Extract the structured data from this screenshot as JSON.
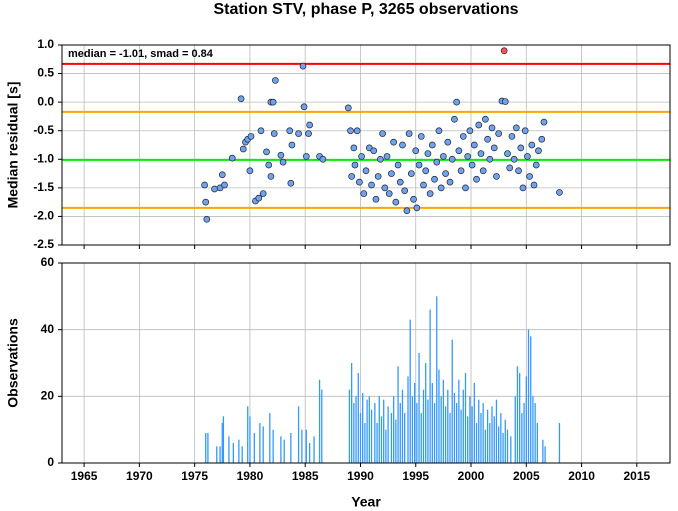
{
  "chart_data": [
    {
      "type": "scatter",
      "title": "Station STV, phase P, 3265 observations",
      "ylabel": "Median residual [s]",
      "annotation": "median = -1.01, smad = 0.84",
      "xlim": [
        1963,
        2018
      ],
      "xticks": [
        1965,
        1970,
        1975,
        1980,
        1985,
        1990,
        1995,
        2000,
        2005,
        2010,
        2015
      ],
      "ylim": [
        -2.5,
        1.0
      ],
      "yticks": [
        {
          "value": 1,
          "label": "1.0"
        },
        0.5,
        {
          "value": 0,
          "label": "0.0"
        },
        -0.5,
        {
          "value": -1,
          "label": "-1.0"
        },
        -1.5,
        {
          "value": -2,
          "label": "-2.0"
        },
        -2.5
      ],
      "grid": true,
      "color": "#6fa3ee",
      "hlines": [
        {
          "value": 0.67,
          "color": "#ff0000"
        },
        {
          "value": -0.17,
          "color": "#ffa500"
        },
        {
          "value": -1.01,
          "color": "#00ee00"
        },
        {
          "value": -1.85,
          "color": "#ffa500"
        }
      ],
      "x": [
        1975.9,
        1976.0,
        1976.1,
        1976.8,
        1977.3,
        1977.5,
        1977.7,
        1978.4,
        1979.2,
        1979.4,
        1979.6,
        1979.8,
        1980.0,
        1980.1,
        1980.5,
        1980.8,
        1981.0,
        1981.2,
        1981.5,
        1981.7,
        1981.9,
        1981.9,
        1982.1,
        1982.3,
        1982.2,
        1982.8,
        1983.0,
        1983.6,
        1983.7,
        1983.8,
        1984.4,
        1984.8,
        1984.9,
        1985.1,
        1985.3,
        1985.4,
        1986.3,
        1986.6,
        1988.9,
        1989.1,
        1989.2,
        1989.4,
        1989.5,
        1989.7,
        1989.9,
        1990.1,
        1990.3,
        1990.5,
        1990.8,
        1991.0,
        1991.2,
        1991.4,
        1991.6,
        1991.8,
        1992.0,
        1992.2,
        1992.4,
        1992.6,
        1992.8,
        1993.0,
        1993.2,
        1993.4,
        1993.6,
        1993.8,
        1994.0,
        1994.2,
        1994.4,
        1994.6,
        1994.8,
        1995.0,
        1995.1,
        1995.3,
        1995.5,
        1995.7,
        1995.9,
        1996.1,
        1996.3,
        1996.5,
        1996.7,
        1996.9,
        1997.1,
        1997.3,
        1997.5,
        1997.7,
        1997.9,
        1998.1,
        1998.3,
        1998.5,
        1998.7,
        1998.9,
        1999.1,
        1999.3,
        1999.5,
        1999.7,
        1999.9,
        2000.1,
        2000.3,
        2000.5,
        2000.7,
        2000.9,
        2001.1,
        2001.3,
        2001.5,
        2001.7,
        2001.9,
        2002.1,
        2002.3,
        2002.5,
        2002.8,
        2003.1,
        2003.3,
        2003.5,
        2003.7,
        2003.9,
        2004.1,
        2004.3,
        2004.5,
        2004.7,
        2004.9,
        2005.1,
        2005.3,
        2005.5,
        2005.7,
        2005.9,
        2006.1,
        2006.4,
        2006.6,
        2008.0
      ],
      "values": [
        -1.45,
        -1.75,
        -2.05,
        -1.52,
        -1.5,
        -1.27,
        -1.45,
        -0.98,
        0.06,
        -0.82,
        -0.7,
        -0.65,
        -1.2,
        -0.6,
        -1.73,
        -1.68,
        -0.5,
        -1.6,
        -0.87,
        -1.1,
        -1.3,
        0.0,
        0.0,
        0.38,
        -0.55,
        -0.93,
        -1.05,
        -0.5,
        -1.42,
        -0.75,
        -0.55,
        0.63,
        -0.08,
        -0.95,
        -0.55,
        -0.4,
        -0.95,
        -1.0,
        -0.1,
        -0.5,
        -1.3,
        -0.8,
        -1.1,
        -0.5,
        -1.4,
        -0.95,
        -1.6,
        -1.2,
        -0.8,
        -1.45,
        -0.85,
        -1.7,
        -1.3,
        -1.0,
        -0.55,
        -1.5,
        -0.95,
        -1.6,
        -1.25,
        -0.7,
        -1.75,
        -1.1,
        -1.4,
        -0.75,
        -1.55,
        -1.9,
        -0.55,
        -1.25,
        -1.7,
        -0.85,
        -1.85,
        -1.1,
        -0.6,
        -1.45,
        -1.2,
        -0.9,
        -1.6,
        -0.75,
        -1.35,
        -1.05,
        -0.5,
        -1.5,
        -0.95,
        -1.25,
        -0.7,
        -1.4,
        -1.0,
        -0.3,
        0.0,
        -0.85,
        -1.2,
        -0.6,
        -1.5,
        -0.95,
        -0.5,
        -1.1,
        -0.75,
        -1.35,
        -0.4,
        -0.9,
        -1.2,
        -0.3,
        -0.65,
        -1.0,
        -0.45,
        -0.8,
        -1.3,
        -0.55,
        0.02,
        0.01,
        -0.9,
        -1.15,
        -0.6,
        -1.0,
        -0.45,
        -1.2,
        -0.8,
        -1.5,
        -0.5,
        -0.95,
        -1.3,
        -0.75,
        -1.45,
        -1.1,
        -0.85,
        -0.65,
        -0.35,
        -1.58
      ],
      "outlier_x": [
        2003.0
      ],
      "outlier_values": [
        0.9
      ],
      "outlier_color": "#ff5555"
    },
    {
      "type": "bar",
      "ylabel": "Observations",
      "xlabel": "Year",
      "xlim": [
        1963,
        2018
      ],
      "xticks": [
        1965,
        1970,
        1975,
        1980,
        1985,
        1990,
        1995,
        2000,
        2005,
        2010,
        2015
      ],
      "ylim": [
        0,
        60
      ],
      "yticks": [
        0,
        20,
        40,
        60
      ],
      "grid": true,
      "color": "#3399ff",
      "x": [
        1976.0,
        1976.2,
        1977.0,
        1977.3,
        1977.5,
        1977.6,
        1978.1,
        1978.5,
        1979.0,
        1979.3,
        1979.8,
        1980.0,
        1980.4,
        1980.9,
        1981.2,
        1981.8,
        1982.1,
        1982.8,
        1983.1,
        1983.7,
        1984.4,
        1984.7,
        1985.1,
        1985.4,
        1985.8,
        1986.3,
        1986.5,
        1989.0,
        1989.2,
        1989.4,
        1989.6,
        1989.8,
        1990.0,
        1990.2,
        1990.4,
        1990.6,
        1990.8,
        1991.0,
        1991.3,
        1991.5,
        1991.7,
        1991.9,
        1992.1,
        1992.3,
        1992.5,
        1992.8,
        1993.0,
        1993.2,
        1993.4,
        1993.6,
        1993.8,
        1994.0,
        1994.3,
        1994.5,
        1994.7,
        1994.9,
        1995.1,
        1995.3,
        1995.5,
        1995.7,
        1995.9,
        1996.1,
        1996.3,
        1996.5,
        1996.7,
        1996.9,
        1997.1,
        1997.3,
        1997.5,
        1997.7,
        1997.9,
        1998.1,
        1998.3,
        1998.5,
        1998.7,
        1998.9,
        1999.1,
        1999.3,
        1999.5,
        1999.7,
        1999.9,
        2000.1,
        2000.3,
        2000.5,
        2000.7,
        2000.9,
        2001.1,
        2001.3,
        2001.5,
        2001.7,
        2001.9,
        2002.1,
        2002.3,
        2002.5,
        2002.7,
        2002.9,
        2003.1,
        2003.3,
        2003.6,
        2004.0,
        2004.2,
        2004.4,
        2004.6,
        2004.8,
        2005.0,
        2005.2,
        2005.4,
        2005.6,
        2005.8,
        2006.0,
        2006.5,
        2006.7,
        2008.0
      ],
      "values": [
        9,
        9,
        5,
        5,
        12,
        14,
        8,
        6,
        7,
        5,
        17,
        14,
        9,
        12,
        11,
        15,
        10,
        8,
        7,
        9,
        17,
        10,
        10,
        6,
        8,
        25,
        22,
        22,
        30,
        18,
        20,
        27,
        15,
        21,
        12,
        19,
        20,
        16,
        18,
        12,
        20,
        14,
        19,
        10,
        17,
        15,
        20,
        13,
        29,
        18,
        22,
        15,
        26,
        43,
        20,
        24,
        18,
        33,
        15,
        22,
        30,
        19,
        46,
        24,
        18,
        50,
        28,
        20,
        25,
        17,
        22,
        15,
        37,
        21,
        18,
        25,
        16,
        22,
        27,
        14,
        20,
        17,
        24,
        12,
        19,
        15,
        18,
        10,
        16,
        12,
        17,
        14,
        19,
        11,
        15,
        9,
        13,
        10,
        8,
        20,
        29,
        27,
        15,
        18,
        26,
        40,
        38,
        20,
        18,
        12,
        7,
        5,
        12
      ]
    }
  ]
}
